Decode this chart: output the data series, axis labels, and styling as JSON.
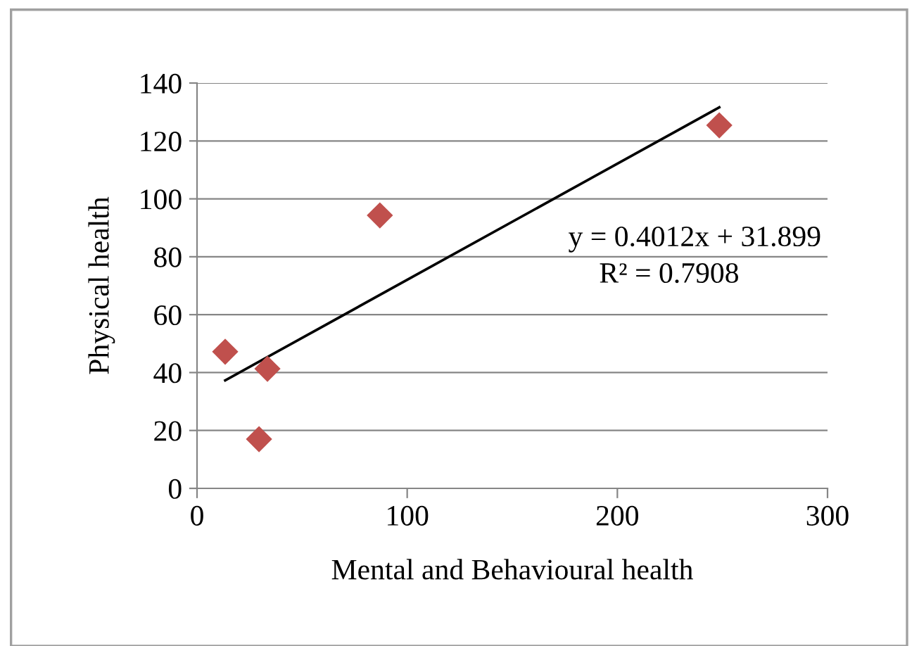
{
  "chart_data": {
    "type": "scatter",
    "xlabel": "Mental and Behavioural health",
    "ylabel": "Physical health",
    "xlim": [
      0,
      300
    ],
    "xticks": [
      0,
      100,
      200,
      300
    ],
    "ylim": [
      0,
      140
    ],
    "yticks": [
      0,
      20,
      40,
      60,
      80,
      100,
      120,
      140
    ],
    "grid": "y",
    "marker": "diamond",
    "series": [
      {
        "color": "#c0504d",
        "x": [
          13.4,
          33.5,
          29.5,
          87,
          248.5
        ],
        "values": [
          47.2,
          41.3,
          17,
          94.3,
          125.4
        ]
      },
      {
        "type": "line",
        "color": "#000000",
        "x": [
          13.4,
          248.5
        ],
        "values": [
          37.3,
          131.6
        ],
        "line_style": "solid",
        "marker": "none"
      }
    ],
    "annotations": [
      "y = 0.4012x + 31.899",
      "R² = 0.7908"
    ]
  }
}
